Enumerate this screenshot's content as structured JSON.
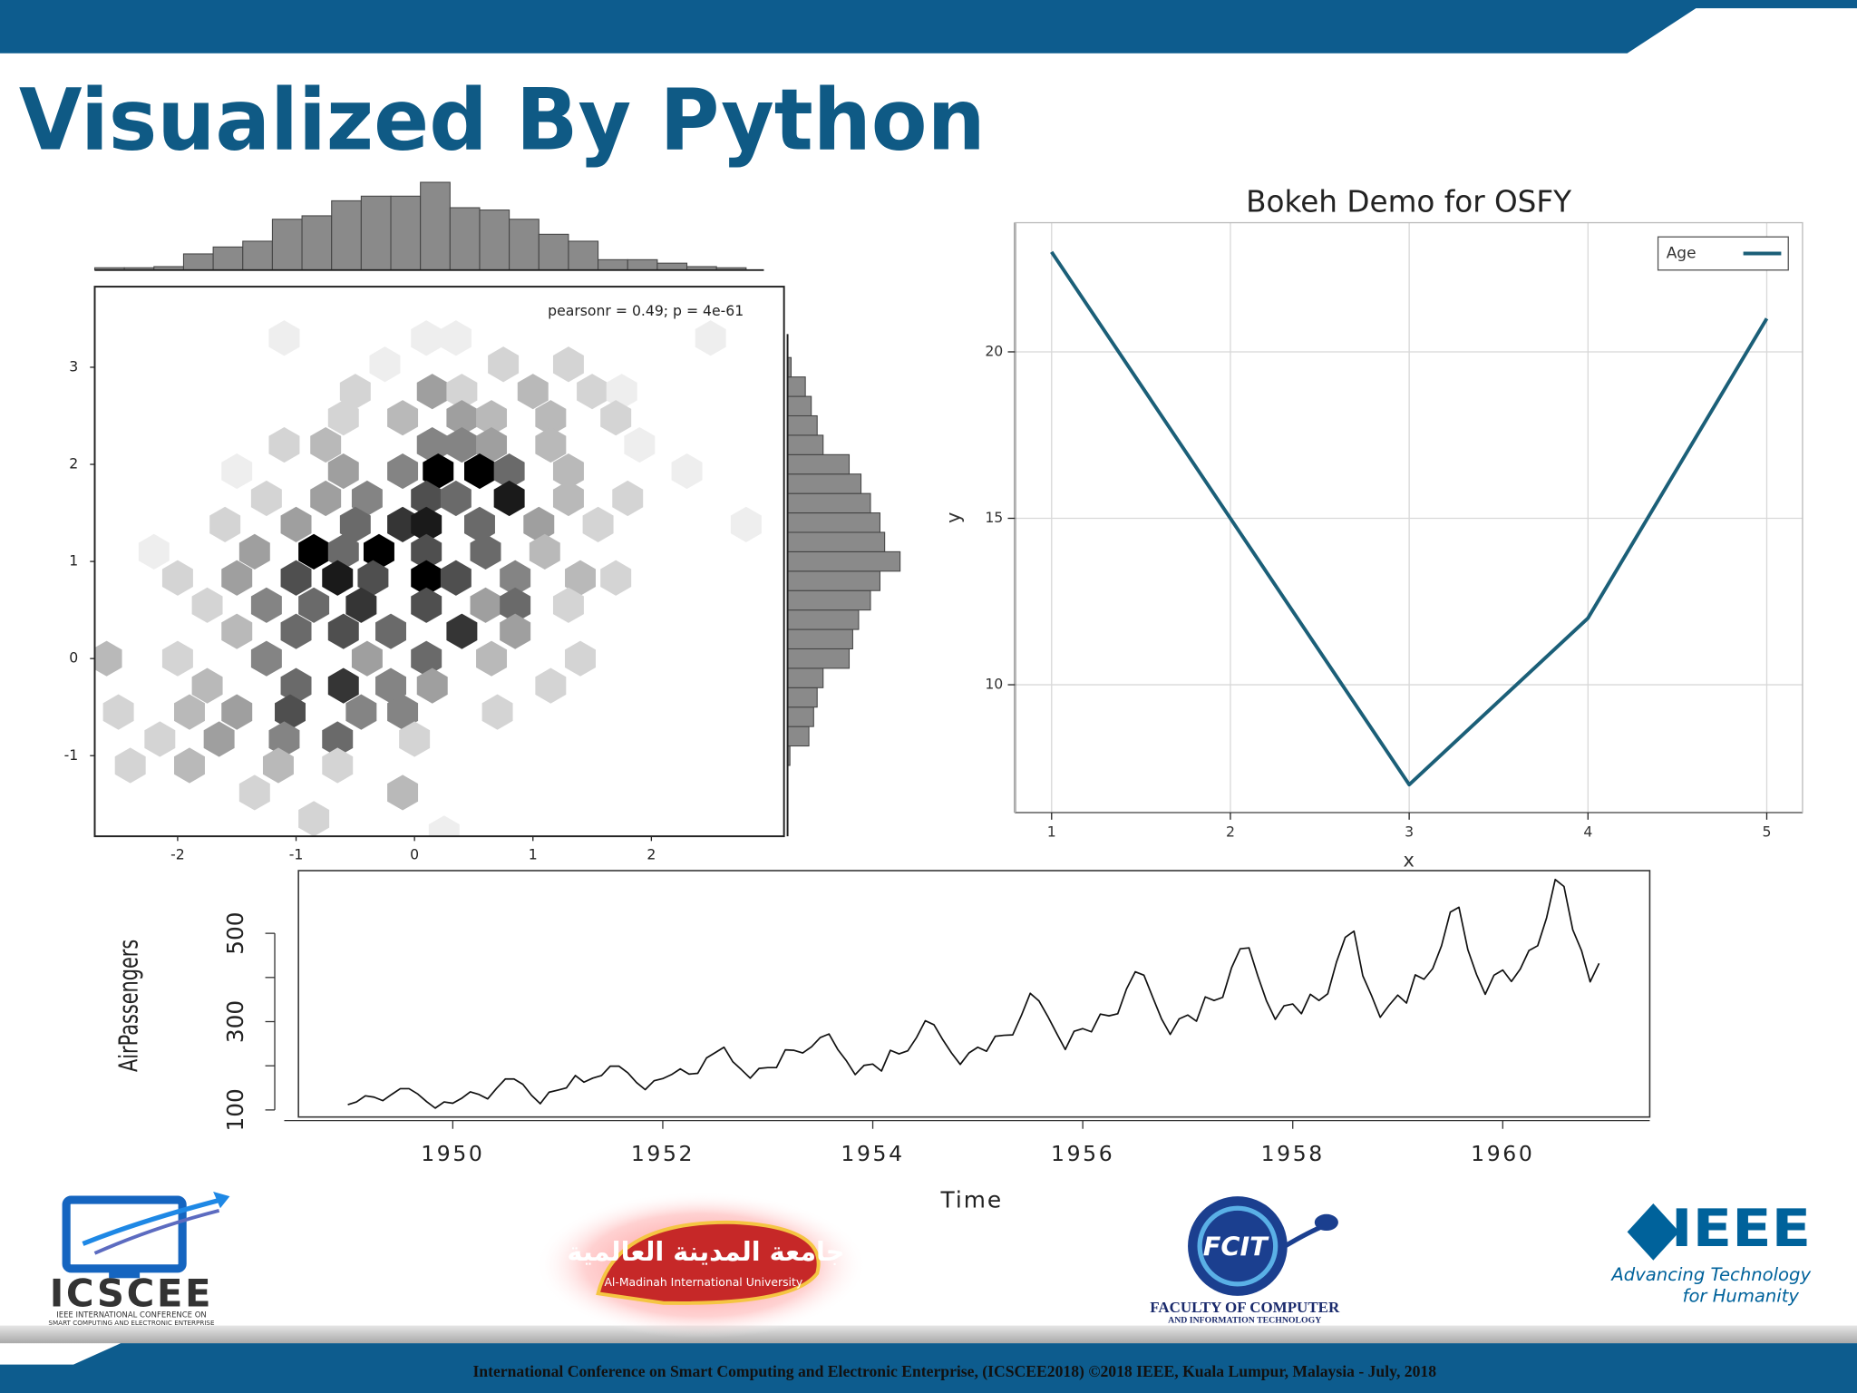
{
  "slide": {
    "title": "Visualized By Python",
    "footer": "International Conference on Smart Computing and Electronic Enterprise, (ICSCEE2018) ©2018 IEEE, Kuala Lumpur, Malaysia - July, 2018"
  },
  "logos": {
    "icscee": {
      "name": "ICSCEE",
      "line1": "IEEE INTERNATIONAL CONFERENCE ON",
      "line2": "SMART COMPUTING AND ELECTRONIC ENTERPRISE"
    },
    "university": {
      "arabic": "جامعة المدينة العالمية",
      "english": "Al-Madinah International University"
    },
    "fcit": {
      "name": "FCIT",
      "line1": "FACULTY OF COMPUTER",
      "line2": "AND INFORMATION TECHNOLOGY"
    },
    "ieee": {
      "name": "IEEE",
      "line1": "Advancing Technology",
      "line2": "for Humanity"
    }
  },
  "chart_data": [
    {
      "type": "hexbin",
      "annotation": "pearsonr = 0.49; p = 4e-61",
      "x": [
        -1.1,
        0.1,
        0.35,
        2.5,
        -0.25,
        0.75,
        1.3,
        -0.5,
        0.15,
        0.4,
        1.0,
        1.5,
        1.75,
        -0.6,
        -0.1,
        0.4,
        0.65,
        1.15,
        1.7,
        -1.1,
        -0.75,
        0.15,
        0.4,
        0.65,
        1.15,
        1.9,
        -1.5,
        -0.6,
        -0.1,
        0.2,
        0.55,
        0.8,
        1.3,
        2.3,
        -1.25,
        -0.75,
        -0.4,
        0.1,
        0.35,
        0.8,
        1.3,
        1.8,
        -1.6,
        -1.0,
        -0.5,
        -0.1,
        0.1,
        0.55,
        1.05,
        1.55,
        2.8,
        -2.2,
        -1.35,
        -0.85,
        -0.6,
        -0.3,
        0.1,
        0.6,
        1.1,
        -2.0,
        -1.5,
        -1.0,
        -0.65,
        -0.35,
        0.1,
        0.35,
        0.85,
        1.4,
        1.7,
        -1.75,
        -1.25,
        -0.85,
        -0.45,
        0.1,
        0.6,
        0.85,
        1.3,
        -1.5,
        -1.0,
        -0.6,
        -0.2,
        0.4,
        0.85,
        -2.6,
        -2.0,
        -1.25,
        -0.4,
        0.1,
        0.65,
        1.4,
        -1.75,
        -1.0,
        -0.6,
        -0.2,
        0.15,
        1.15,
        -2.5,
        -1.9,
        -1.5,
        -1.05,
        -0.45,
        -0.1,
        0.7,
        -2.15,
        -1.65,
        -1.1,
        -0.65,
        0.0,
        -2.4,
        -1.9,
        -1.15,
        -0.65,
        -1.35,
        -0.1,
        -0.85,
        0.25
      ],
      "y": [
        3.3,
        3.3,
        3.3,
        3.3,
        3.03,
        3.03,
        3.03,
        2.75,
        2.75,
        2.75,
        2.75,
        2.75,
        2.75,
        2.48,
        2.48,
        2.48,
        2.48,
        2.48,
        2.48,
        2.2,
        2.2,
        2.2,
        2.2,
        2.2,
        2.2,
        2.2,
        1.93,
        1.93,
        1.93,
        1.93,
        1.93,
        1.93,
        1.93,
        1.93,
        1.65,
        1.65,
        1.65,
        1.65,
        1.65,
        1.65,
        1.65,
        1.65,
        1.38,
        1.38,
        1.38,
        1.38,
        1.38,
        1.38,
        1.38,
        1.38,
        1.38,
        1.1,
        1.1,
        1.1,
        1.1,
        1.1,
        1.1,
        1.1,
        1.1,
        0.83,
        0.83,
        0.83,
        0.83,
        0.83,
        0.83,
        0.83,
        0.83,
        0.83,
        0.83,
        0.55,
        0.55,
        0.55,
        0.55,
        0.55,
        0.55,
        0.55,
        0.55,
        0.28,
        0.28,
        0.28,
        0.28,
        0.28,
        0.28,
        0.0,
        0.0,
        0.0,
        0.0,
        0.0,
        0.0,
        0.0,
        -0.28,
        -0.28,
        -0.28,
        -0.28,
        -0.28,
        -0.28,
        -0.55,
        -0.55,
        -0.55,
        -0.55,
        -0.55,
        -0.55,
        -0.55,
        -0.83,
        -0.83,
        -0.83,
        -0.83,
        -0.83,
        -1.1,
        -1.1,
        -1.1,
        -1.1,
        -1.38,
        -1.38,
        -1.65,
        -1.8
      ],
      "counts": [
        1,
        1,
        1,
        1,
        1,
        2,
        2,
        2,
        4,
        2,
        3,
        2,
        1,
        2,
        3,
        4,
        3,
        3,
        2,
        2,
        3,
        5,
        5,
        4,
        3,
        1,
        1,
        4,
        5,
        10,
        10,
        6,
        3,
        1,
        2,
        4,
        5,
        7,
        6,
        9,
        3,
        2,
        2,
        4,
        6,
        8,
        9,
        6,
        4,
        2,
        1,
        1,
        4,
        10,
        6,
        10,
        7,
        6,
        3,
        2,
        4,
        7,
        9,
        7,
        10,
        7,
        5,
        3,
        2,
        2,
        5,
        6,
        8,
        7,
        4,
        6,
        2,
        3,
        6,
        7,
        6,
        8,
        4,
        3,
        2,
        5,
        4,
        6,
        3,
        2,
        3,
        6,
        8,
        5,
        4,
        2,
        2,
        3,
        4,
        7,
        5,
        5,
        2,
        2,
        4,
        5,
        6,
        2,
        2,
        3,
        3,
        2,
        2,
        3,
        2,
        1
      ],
      "xlim": [
        -2.7,
        3.12
      ],
      "ylim": [
        -1.83,
        3.83
      ],
      "xticks": [
        -2,
        -1,
        0,
        1,
        2
      ],
      "yticks": [
        -1,
        0,
        1,
        2,
        3
      ],
      "x_hist": {
        "bins": [
          -2.7,
          -2.45,
          -2.2,
          -1.95,
          -1.7,
          -1.45,
          -1.2,
          -0.95,
          -0.7,
          -0.45,
          -0.2,
          0.05,
          0.3,
          0.55,
          0.8,
          1.05,
          1.3,
          1.55,
          1.8,
          2.05,
          2.3,
          2.55,
          2.8
        ],
        "counts": [
          2,
          2,
          3,
          14,
          20,
          25,
          44,
          47,
          60,
          64,
          64,
          76,
          54,
          52,
          44,
          31,
          25,
          9,
          9,
          6,
          3,
          2
        ],
        "ylim": [
          0,
          80
        ]
      },
      "y_hist": {
        "bins": [
          -1.1,
          -0.9,
          -0.7,
          -0.5,
          -0.3,
          -0.1,
          0.1,
          0.3,
          0.5,
          0.7,
          0.9,
          1.1,
          1.3,
          1.5,
          1.7,
          1.9,
          2.1,
          2.3,
          2.5,
          2.7,
          2.9,
          3.1
        ],
        "counts": [
          2,
          18,
          22,
          25,
          30,
          52,
          55,
          60,
          70,
          78,
          95,
          82,
          78,
          70,
          62,
          52,
          30,
          25,
          20,
          15,
          3
        ],
        "xlim": [
          0,
          100
        ]
      },
      "hist_color": "#8a8a8a"
    },
    {
      "type": "line",
      "title": "Bokeh Demo for OSFY",
      "x_label": "x",
      "y_label": "y",
      "x": [
        1,
        2,
        3,
        4,
        5
      ],
      "series": [
        {
          "name": "Age",
          "color": "#1b5f78",
          "values": [
            23,
            15,
            7,
            12,
            21
          ]
        }
      ],
      "xlim": [
        0.795,
        5.2
      ],
      "ylim": [
        6.16,
        23.88
      ],
      "xticks": [
        1,
        2,
        3,
        4,
        5
      ],
      "yticks": [
        10,
        15,
        20
      ],
      "grid": true,
      "legend": "top-right"
    },
    {
      "type": "line",
      "x_label": "Time",
      "y_label": "AirPassengers",
      "x": [
        1949,
        1949.083,
        1949.167,
        1949.25,
        1949.333,
        1949.417,
        1949.5,
        1949.583,
        1949.667,
        1949.75,
        1949.833,
        1949.917,
        1950,
        1950.083,
        1950.167,
        1950.25,
        1950.333,
        1950.417,
        1950.5,
        1950.583,
        1950.667,
        1950.75,
        1950.833,
        1950.917,
        1951,
        1951.083,
        1951.167,
        1951.25,
        1951.333,
        1951.417,
        1951.5,
        1951.583,
        1951.667,
        1951.75,
        1951.833,
        1951.917,
        1952,
        1952.083,
        1952.167,
        1952.25,
        1952.333,
        1952.417,
        1952.5,
        1952.583,
        1952.667,
        1952.75,
        1952.833,
        1952.917,
        1953,
        1953.083,
        1953.167,
        1953.25,
        1953.333,
        1953.417,
        1953.5,
        1953.583,
        1953.667,
        1953.75,
        1953.833,
        1953.917,
        1954,
        1954.083,
        1954.167,
        1954.25,
        1954.333,
        1954.417,
        1954.5,
        1954.583,
        1954.667,
        1954.75,
        1954.833,
        1954.917,
        1955,
        1955.083,
        1955.167,
        1955.25,
        1955.333,
        1955.417,
        1955.5,
        1955.583,
        1955.667,
        1955.75,
        1955.833,
        1955.917,
        1956,
        1956.083,
        1956.167,
        1956.25,
        1956.333,
        1956.417,
        1956.5,
        1956.583,
        1956.667,
        1956.75,
        1956.833,
        1956.917,
        1957,
        1957.083,
        1957.167,
        1957.25,
        1957.333,
        1957.417,
        1957.5,
        1957.583,
        1957.667,
        1957.75,
        1957.833,
        1957.917,
        1958,
        1958.083,
        1958.167,
        1958.25,
        1958.333,
        1958.417,
        1958.5,
        1958.583,
        1958.667,
        1958.75,
        1958.833,
        1958.917,
        1959,
        1959.083,
        1959.167,
        1959.25,
        1959.333,
        1959.417,
        1959.5,
        1959.583,
        1959.667,
        1959.75,
        1959.833,
        1959.917,
        1960,
        1960.083,
        1960.167,
        1960.25,
        1960.333,
        1960.417,
        1960.5,
        1960.583,
        1960.667,
        1960.75,
        1960.833,
        1960.917
      ],
      "values": [
        112,
        118,
        132,
        129,
        121,
        135,
        148,
        148,
        136,
        119,
        104,
        118,
        115,
        126,
        141,
        135,
        125,
        149,
        170,
        170,
        158,
        133,
        114,
        140,
        145,
        150,
        178,
        163,
        172,
        178,
        199,
        199,
        184,
        162,
        146,
        166,
        171,
        180,
        193,
        181,
        183,
        218,
        230,
        242,
        209,
        191,
        172,
        194,
        196,
        196,
        236,
        235,
        229,
        243,
        264,
        272,
        237,
        211,
        180,
        201,
        204,
        188,
        235,
        227,
        234,
        264,
        302,
        293,
        259,
        229,
        203,
        229,
        242,
        233,
        267,
        269,
        270,
        315,
        364,
        347,
        312,
        274,
        237,
        278,
        284,
        277,
        317,
        313,
        318,
        374,
        413,
        405,
        355,
        306,
        271,
        306,
        315,
        301,
        356,
        348,
        355,
        422,
        465,
        467,
        404,
        347,
        305,
        336,
        340,
        318,
        362,
        348,
        363,
        435,
        491,
        505,
        404,
        359,
        310,
        337,
        360,
        342,
        406,
        396,
        420,
        472,
        548,
        559,
        463,
        407,
        362,
        405,
        417,
        391,
        419,
        461,
        472,
        535,
        622,
        606,
        508,
        461,
        390,
        432
      ],
      "color": "#111111",
      "xlim": [
        1948.53,
        1961.4
      ],
      "ylim": [
        84,
        642
      ],
      "xticks": [
        1950,
        1952,
        1954,
        1956,
        1958,
        1960
      ],
      "yticks": [
        100,
        300,
        500
      ],
      "yminorticks": [
        200,
        400
      ],
      "grid": false
    }
  ]
}
